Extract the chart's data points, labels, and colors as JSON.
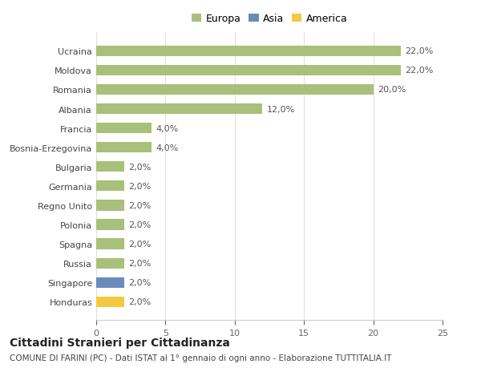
{
  "categories": [
    "Honduras",
    "Singapore",
    "Russia",
    "Spagna",
    "Polonia",
    "Regno Unito",
    "Germania",
    "Bulgaria",
    "Bosnia-Erzegovina",
    "Francia",
    "Albania",
    "Romania",
    "Moldova",
    "Ucraina"
  ],
  "values": [
    2.0,
    2.0,
    2.0,
    2.0,
    2.0,
    2.0,
    2.0,
    2.0,
    4.0,
    4.0,
    12.0,
    20.0,
    22.0,
    22.0
  ],
  "labels": [
    "2,0%",
    "2,0%",
    "2,0%",
    "2,0%",
    "2,0%",
    "2,0%",
    "2,0%",
    "2,0%",
    "4,0%",
    "4,0%",
    "12,0%",
    "20,0%",
    "22,0%",
    "22,0%"
  ],
  "colors": [
    "#f5c842",
    "#6b8cba",
    "#a8c07a",
    "#a8c07a",
    "#a8c07a",
    "#a8c07a",
    "#a8c07a",
    "#a8c07a",
    "#a8c07a",
    "#a8c07a",
    "#a8c07a",
    "#a8c07a",
    "#a8c07a",
    "#a8c07a"
  ],
  "legend_labels": [
    "Europa",
    "Asia",
    "America"
  ],
  "legend_colors": [
    "#a8c07a",
    "#6b8cba",
    "#f5c842"
  ],
  "xlim": [
    0,
    25
  ],
  "xticks": [
    0,
    5,
    10,
    15,
    20,
    25
  ],
  "title_main": "Cittadini Stranieri per Cittadinanza",
  "title_sub": "COMUNE DI FARINI (PC) - Dati ISTAT al 1° gennaio di ogni anno - Elaborazione TUTTITALIA.IT",
  "background_color": "#ffffff",
  "bar_height": 0.55,
  "label_fontsize": 8,
  "tick_fontsize": 8,
  "title_fontsize": 10,
  "subtitle_fontsize": 7.5
}
